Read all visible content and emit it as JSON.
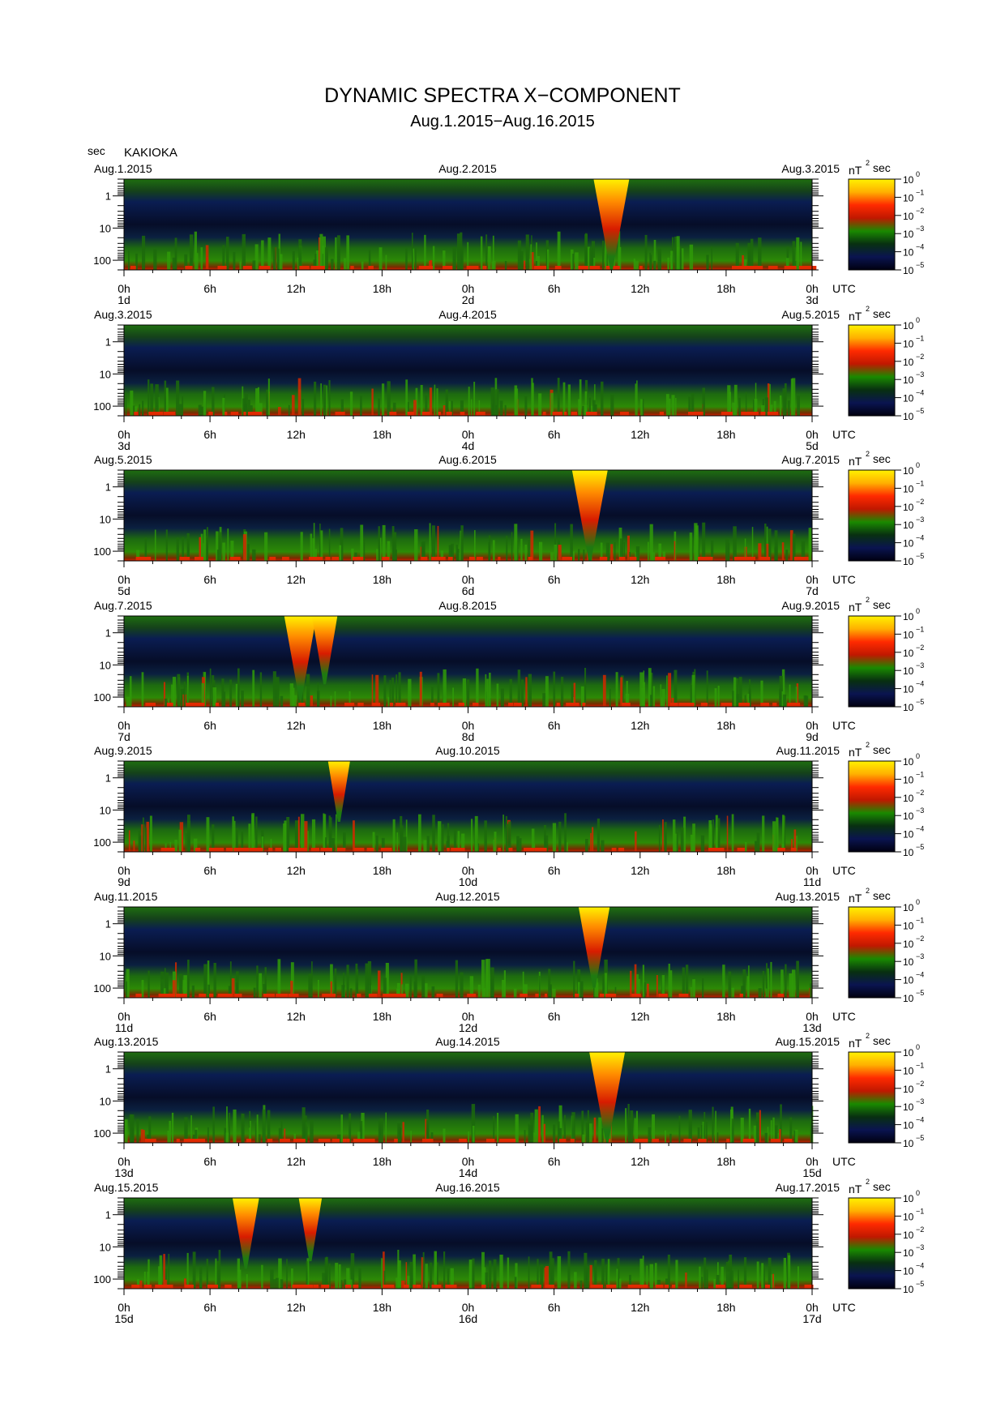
{
  "title": "DYNAMIC SPECTRA X−COMPONENT",
  "subtitle": "Aug.1.2015−Aug.16.2015",
  "station": "KAKIOKA",
  "y_unit": "sec",
  "colorbar": {
    "unit_base": "nT",
    "unit_exp": "2",
    "unit_suffix": "sec",
    "tick_base": "10",
    "tick_exps": [
      "0",
      "−1",
      "−2",
      "−3",
      "−4",
      "−5"
    ],
    "colors": [
      "#fff200",
      "#ffb000",
      "#ff2a00",
      "#c01800",
      "#1a8a00",
      "#083010",
      "#0a1450",
      "#000010"
    ]
  },
  "x_tick_labels": [
    "0h",
    "6h",
    "12h",
    "18h",
    "0h",
    "6h",
    "12h",
    "18h",
    "0h"
  ],
  "x_axis_suffix": "UTC",
  "y_tick_labels": [
    "1",
    "10",
    "100"
  ],
  "panels": [
    {
      "date_left": "Aug.1.2015",
      "date_mid": "Aug.2.2015",
      "date_right": "Aug.3.2015",
      "day_labels": [
        "1d",
        "2d",
        "3d"
      ]
    },
    {
      "date_left": "Aug.3.2015",
      "date_mid": "Aug.4.2015",
      "date_right": "Aug.5.2015",
      "day_labels": [
        "3d",
        "4d",
        "5d"
      ]
    },
    {
      "date_left": "Aug.5.2015",
      "date_mid": "Aug.6.2015",
      "date_right": "Aug.7.2015",
      "day_labels": [
        "5d",
        "6d",
        "7d"
      ]
    },
    {
      "date_left": "Aug.7.2015",
      "date_mid": "Aug.8.2015",
      "date_right": "Aug.9.2015",
      "day_labels": [
        "7d",
        "8d",
        "9d"
      ]
    },
    {
      "date_left": "Aug.9.2015",
      "date_mid": "Aug.10.2015",
      "date_right": "Aug.11.2015",
      "day_labels": [
        "9d",
        "10d",
        "11d"
      ]
    },
    {
      "date_left": "Aug.11.2015",
      "date_mid": "Aug.12.2015",
      "date_right": "Aug.13.2015",
      "day_labels": [
        "11d",
        "12d",
        "13d"
      ]
    },
    {
      "date_left": "Aug.13.2015",
      "date_mid": "Aug.14.2015",
      "date_right": "Aug.15.2015",
      "day_labels": [
        "13d",
        "14d",
        "15d"
      ]
    },
    {
      "date_left": "Aug.15.2015",
      "date_mid": "Aug.16.2015",
      "date_right": "Aug.17.2015",
      "day_labels": [
        "15d",
        "16d",
        "17d"
      ]
    }
  ],
  "chart_data": {
    "type": "heatmap",
    "title": "DYNAMIC SPECTRA X−COMPONENT",
    "subtitle": "Aug.1.2015−Aug.16.2015",
    "ylabel": "sec",
    "y_scale": "log",
    "y_reversed": true,
    "y_ticks": [
      1,
      10,
      100
    ],
    "ylim": [
      0.3,
      200
    ],
    "x_hours": [
      0,
      48
    ],
    "colorbar": {
      "scale": "log",
      "min": 1e-05,
      "max": 1,
      "unit": "nT² sec"
    },
    "events": [
      {
        "panel": 0,
        "hour": 34.0,
        "strength": 1.0
      },
      {
        "panel": 2,
        "hour": 32.5,
        "strength": 1.0
      },
      {
        "panel": 3,
        "hour": 12.3,
        "strength": 0.85
      },
      {
        "panel": 3,
        "hour": 14.0,
        "strength": 0.55
      },
      {
        "panel": 4,
        "hour": 15.0,
        "strength": 0.4
      },
      {
        "panel": 5,
        "hour": 32.8,
        "strength": 0.8
      },
      {
        "panel": 6,
        "hour": 33.7,
        "strength": 1.0
      },
      {
        "panel": 7,
        "hour": 8.5,
        "strength": 0.6
      },
      {
        "panel": 7,
        "hour": 13.0,
        "strength": 0.45
      }
    ]
  }
}
